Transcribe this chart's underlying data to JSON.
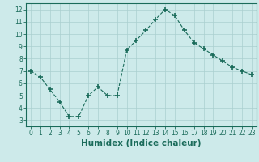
{
  "x": [
    0,
    1,
    2,
    3,
    4,
    5,
    6,
    7,
    8,
    9,
    10,
    11,
    12,
    13,
    14,
    15,
    16,
    17,
    18,
    19,
    20,
    21,
    22,
    23
  ],
  "y": [
    7.0,
    6.5,
    5.5,
    4.5,
    3.3,
    3.3,
    5.0,
    5.7,
    5.0,
    5.0,
    8.7,
    9.5,
    10.3,
    11.2,
    12.0,
    11.5,
    10.3,
    9.3,
    8.8,
    8.3,
    7.8,
    7.3,
    7.0,
    6.7
  ],
  "line_color": "#1a6b5a",
  "marker": "+",
  "marker_size": 4,
  "xlabel": "Humidex (Indice chaleur)",
  "ylabel": "",
  "title": "",
  "xlim": [
    -0.5,
    23.5
  ],
  "ylim": [
    2.5,
    12.5
  ],
  "xticks": [
    0,
    1,
    2,
    3,
    4,
    5,
    6,
    7,
    8,
    9,
    10,
    11,
    12,
    13,
    14,
    15,
    16,
    17,
    18,
    19,
    20,
    21,
    22,
    23
  ],
  "yticks": [
    3,
    4,
    5,
    6,
    7,
    8,
    9,
    10,
    11,
    12
  ],
  "background_color": "#cdeaea",
  "grid_color": "#aacfcf",
  "tick_label_fontsize": 5.5,
  "xlabel_fontsize": 7.5
}
